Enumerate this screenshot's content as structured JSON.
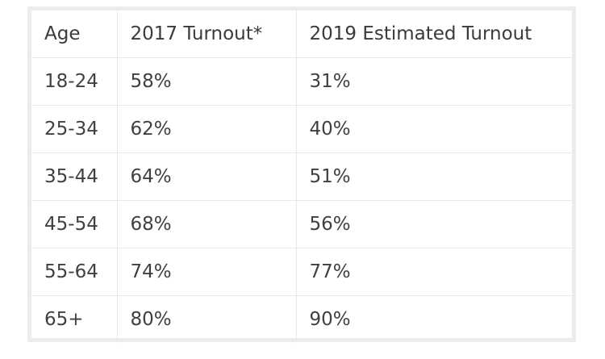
{
  "table": {
    "headers": [
      "Age",
      "2017 Turnout*",
      "2019 Estimated Turnout"
    ],
    "rows": [
      [
        "18-24",
        "58%",
        "31%"
      ],
      [
        "25-34",
        "62%",
        "40%"
      ],
      [
        "35-44",
        "64%",
        "51%"
      ],
      [
        "45-54",
        "68%",
        "56%"
      ],
      [
        "55-64",
        "74%",
        "77%"
      ],
      [
        "65+",
        "80%",
        "90%"
      ]
    ]
  }
}
